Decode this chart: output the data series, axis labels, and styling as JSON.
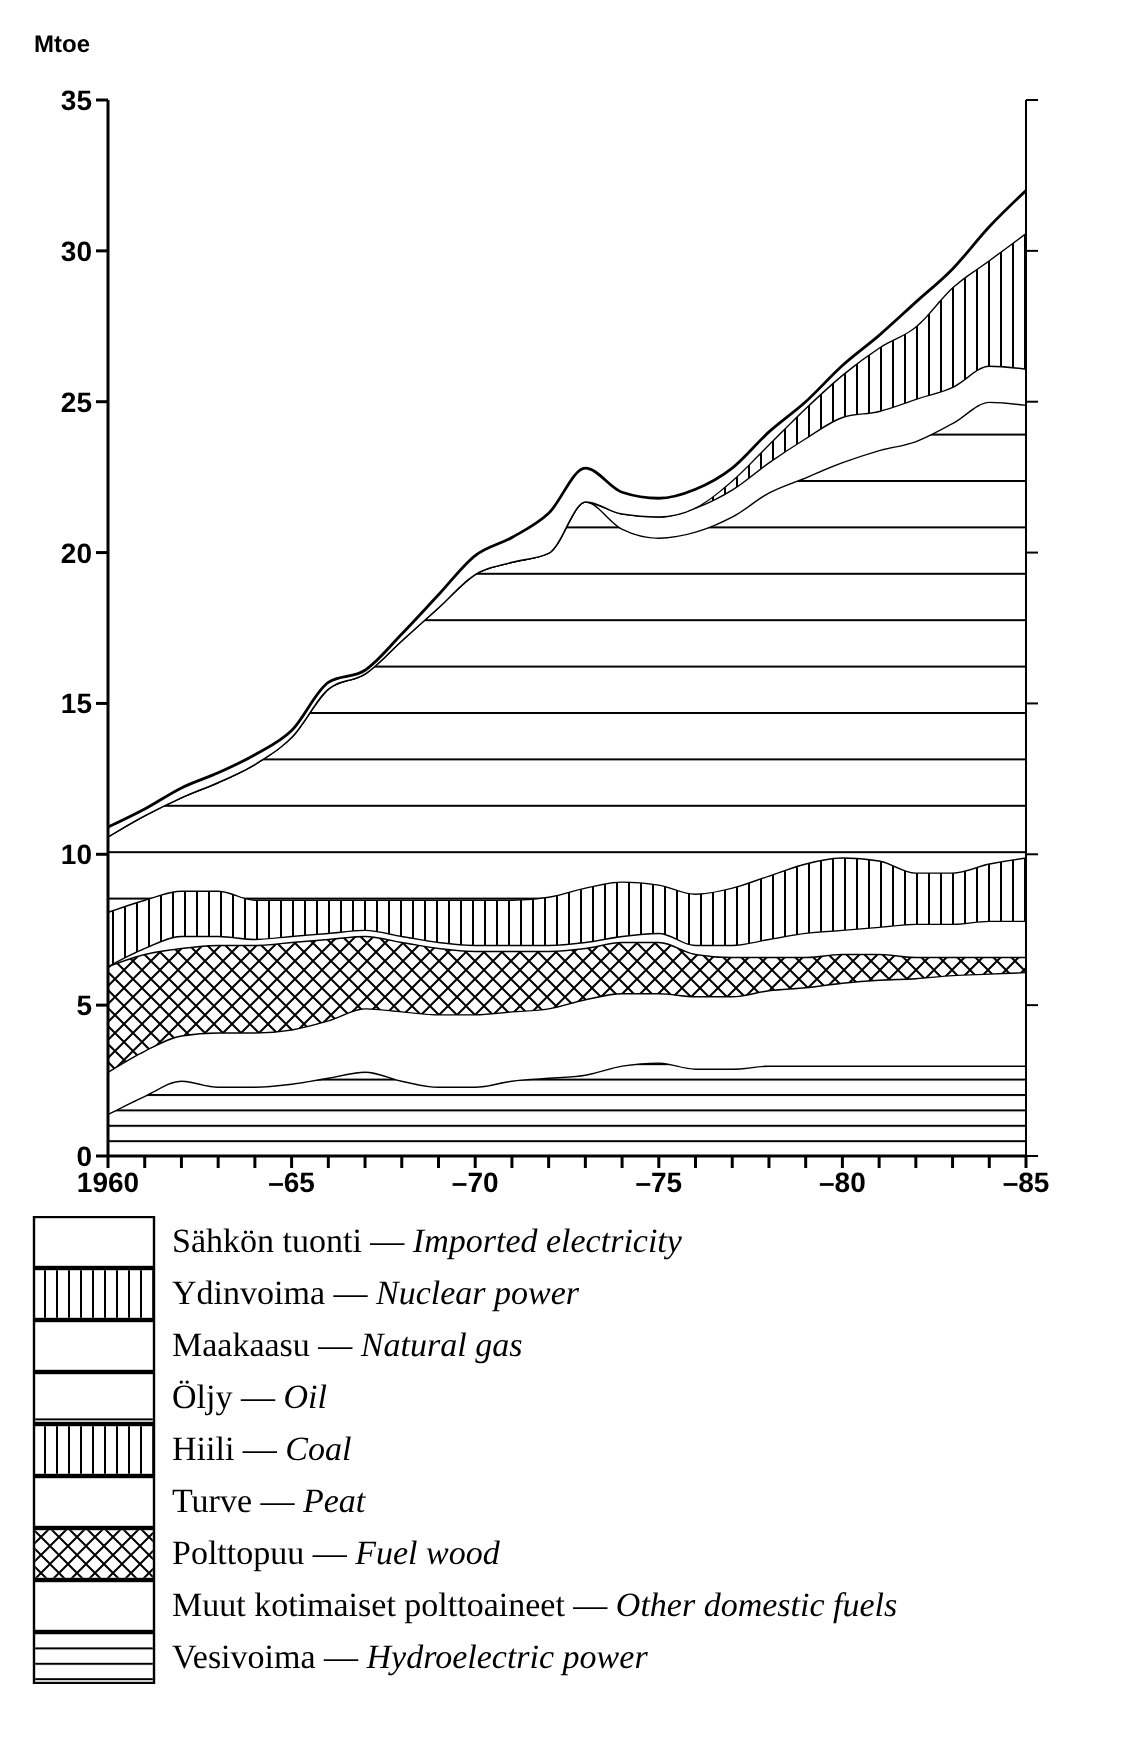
{
  "chart_data": {
    "type": "area",
    "stacked": true,
    "ylabel": "Mtoe",
    "categories": [
      "1960",
      null,
      null,
      null,
      null,
      "–65",
      null,
      null,
      null,
      null,
      "–70",
      null,
      null,
      null,
      null,
      "–75",
      null,
      null,
      null,
      null,
      "–80",
      null,
      null,
      null,
      null,
      "–85"
    ],
    "ylim": [
      0,
      35
    ],
    "yticks": [
      0,
      5,
      10,
      15,
      20,
      25,
      30,
      35
    ],
    "legend": "bottom",
    "series": [
      {
        "name": "Vesivoima — Hydroelectric power",
        "color": "#000000",
        "values": [
          1.4,
          2.0,
          2.5,
          2.3,
          2.3,
          2.4,
          2.6,
          2.8,
          2.5,
          2.3,
          2.3,
          2.5,
          2.6,
          2.7,
          3.0,
          3.1,
          2.9,
          2.9,
          3.0,
          3.0,
          3.0,
          3.0,
          3.0,
          3.0,
          3.0,
          3.0
        ]
      },
      {
        "name": "Muut kotimaiset polttoaineet — Other domestic fuels",
        "color": "#000000",
        "values": [
          1.4,
          1.5,
          1.5,
          1.8,
          1.8,
          1.8,
          1.9,
          2.1,
          2.3,
          2.4,
          2.4,
          2.3,
          2.3,
          2.5,
          2.4,
          2.3,
          2.4,
          2.4,
          2.5,
          2.6,
          2.75,
          2.85,
          2.9,
          3.0,
          3.05,
          3.1
        ]
      },
      {
        "name": "Polttopuu — Fuel wood",
        "color": "#000000",
        "values": [
          3.5,
          3.2,
          2.9,
          2.9,
          2.9,
          2.9,
          2.7,
          2.4,
          2.3,
          2.2,
          2.1,
          2.0,
          1.9,
          1.7,
          1.7,
          1.7,
          1.4,
          1.3,
          1.1,
          1.0,
          0.95,
          0.85,
          0.7,
          0.6,
          0.55,
          0.5
        ]
      },
      {
        "name": "Turve — Peat",
        "color": "#000000",
        "values": [
          0,
          0.2,
          0.4,
          0.3,
          0.2,
          0.2,
          0.2,
          0.2,
          0.2,
          0.2,
          0.2,
          0.2,
          0.2,
          0.2,
          0.2,
          0.3,
          0.3,
          0.4,
          0.6,
          0.8,
          0.8,
          0.9,
          1.1,
          1.1,
          1.2,
          1.2
        ]
      },
      {
        "name": "Hiili — Coal",
        "color": "#000000",
        "values": [
          1.8,
          1.6,
          1.5,
          1.5,
          1.3,
          1.2,
          1.1,
          1.0,
          1.2,
          1.4,
          1.5,
          1.5,
          1.6,
          1.8,
          1.8,
          1.6,
          1.7,
          1.9,
          2.1,
          2.3,
          2.4,
          2.2,
          1.7,
          1.7,
          1.9,
          2.1
        ]
      },
      {
        "name": "Öljy — Oil",
        "color": "#000000",
        "values": [
          2.5,
          2.8,
          3.1,
          3.6,
          4.5,
          5.4,
          7.0,
          7.5,
          8.6,
          9.7,
          10.8,
          11.2,
          11.4,
          12.8,
          11.7,
          11.5,
          12.0,
          12.3,
          12.7,
          12.8,
          13.1,
          13.6,
          14.3,
          14.9,
          15.3,
          15.0
        ]
      },
      {
        "name": "Maakaasu — Natural gas",
        "color": "#000000",
        "values": [
          0,
          0,
          0,
          0,
          0,
          0,
          0,
          0,
          0,
          0,
          0,
          0,
          0,
          0,
          0.5,
          0.7,
          0.8,
          0.9,
          1.0,
          1.3,
          1.5,
          1.3,
          1.4,
          1.2,
          1.2,
          1.2
        ]
      },
      {
        "name": "Ydinvoima — Nuclear power",
        "color": "#000000",
        "values": [
          0,
          0,
          0,
          0,
          0,
          0,
          0,
          0,
          0,
          0,
          0,
          0,
          0,
          0,
          0,
          0,
          0,
          0.3,
          0.6,
          1.0,
          1.4,
          2.1,
          2.4,
          3.3,
          3.5,
          4.5
        ]
      },
      {
        "name": "Sähkön tuonti — Imported electricity",
        "color": "#000000",
        "values": [
          0.3,
          0.2,
          0.3,
          0.3,
          0.3,
          0.2,
          0.2,
          0.1,
          0.2,
          0.4,
          0.6,
          0.8,
          1.3,
          1.1,
          0.7,
          0.6,
          0.6,
          0.4,
          0.4,
          0.2,
          0.3,
          0.4,
          0.8,
          0.6,
          1.1,
          1.4
        ]
      }
    ]
  }
}
